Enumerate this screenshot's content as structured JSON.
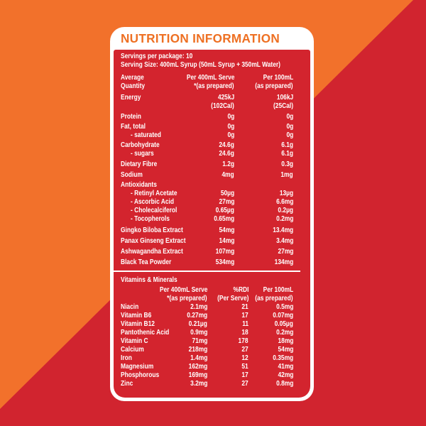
{
  "colors": {
    "background_orange": "#F2712B",
    "background_red": "#D1242F",
    "table_red": "#D3242E",
    "title_orange": "#EE7023",
    "text_white": "#FFFFFF"
  },
  "panel": {
    "title": "NUTRITION INFORMATION",
    "servings_line1": "Servings per package: 10",
    "servings_line2": "Serving Size: 400mL Syrup (50mL Syrup + 350mL Water)"
  },
  "main_table": {
    "header": {
      "col1_line1": "Average",
      "col1_line2": "Quantity",
      "col2_line1": "Per 400mL Serve",
      "col2_line2": "*(as prepared)",
      "col3_line1": "Per 100mL",
      "col3_line2": "(as prepared)"
    },
    "rows": [
      {
        "label": "Energy",
        "v400": "425kJ",
        "v100": "106kJ",
        "gap": 4
      },
      {
        "label": "",
        "v400": "(102Cal)",
        "v100": "(25Cal)",
        "gap": 0
      },
      {
        "label": "Protein",
        "v400": "0g",
        "v100": "0g",
        "gap": 3
      },
      {
        "label": "Fat, total",
        "v400": "0g",
        "v100": "0g",
        "gap": 2
      },
      {
        "label": "- saturated",
        "v400": "0g",
        "v100": "0g",
        "indent": true,
        "gap": 0
      },
      {
        "label": "Carbohydrate",
        "v400": "24.6g",
        "v100": "6.1g",
        "gap": 2
      },
      {
        "label": "- sugars",
        "v400": "24.6g",
        "v100": "6.1g",
        "indent": true,
        "gap": 0
      },
      {
        "label": "Dietary Fibre",
        "v400": "1.2g",
        "v100": "0.3g",
        "gap": 3
      },
      {
        "label": "Sodium",
        "v400": "4mg",
        "v100": "1mg",
        "gap": 3
      },
      {
        "label": "Antioxidants",
        "v400": "",
        "v100": "",
        "gap": 2
      },
      {
        "label": "- Retinyl Acetate",
        "v400": "50µg",
        "v100": "13µg",
        "indent": true,
        "gap": 0
      },
      {
        "label": "- Ascorbic Acid",
        "v400": "27mg",
        "v100": "6.6mg",
        "indent": true,
        "gap": 0
      },
      {
        "label": "- Cholecalciferol",
        "v400": "0.65µg",
        "v100": "0.2µg",
        "indent": true,
        "gap": 0
      },
      {
        "label": "- Tocopherols",
        "v400": "0.65mg",
        "v100": "0.2mg",
        "indent": true,
        "gap": 0
      },
      {
        "label": "Gingko Biloba Extract",
        "v400": "54mg",
        "v100": "13.4mg",
        "gap": 4
      },
      {
        "label": "Panax Ginseng Extract",
        "v400": "14mg",
        "v100": "3.4mg",
        "gap": 3
      },
      {
        "label": "Ashwagandha Extract",
        "v400": "107mg",
        "v100": "27mg",
        "gap": 3
      },
      {
        "label": "Black Tea Powder",
        "v400": "534mg",
        "v100": "134mg",
        "gap": 3
      }
    ]
  },
  "vitamins_table": {
    "section_title": "Vitamins & Minerals",
    "header": {
      "col2_line1": "Per 400mL Serve",
      "col2_line2": "*(as prepared)",
      "col3_line1": "%RDI",
      "col3_line2": "(Per Serve)",
      "col4_line1": "Per 100mL",
      "col4_line2": "(as prepared)"
    },
    "rows": [
      {
        "label": "Niacin",
        "v400": "2.1mg",
        "rdi": "21",
        "v100": "0.5mg"
      },
      {
        "label": "Vitamin B6",
        "v400": "0.27mg",
        "rdi": "17",
        "v100": "0.07mg"
      },
      {
        "label": "Vitamin B12",
        "v400": "0.21µg",
        "rdi": "11",
        "v100": "0.05µg"
      },
      {
        "label": "Pantothenic Acid",
        "v400": "0.9mg",
        "rdi": "18",
        "v100": "0.2mg"
      },
      {
        "label": "Vitamin C",
        "v400": "71mg",
        "rdi": "178",
        "v100": "18mg"
      },
      {
        "label": "Calcium",
        "v400": "218mg",
        "rdi": "27",
        "v100": "54mg"
      },
      {
        "label": "Iron",
        "v400": "1.4mg",
        "rdi": "12",
        "v100": "0.35mg"
      },
      {
        "label": "Magnesium",
        "v400": "162mg",
        "rdi": "51",
        "v100": "41mg"
      },
      {
        "label": "Phosphorous",
        "v400": "169mg",
        "rdi": "17",
        "v100": "42mg"
      },
      {
        "label": "Zinc",
        "v400": "3.2mg",
        "rdi": "27",
        "v100": "0.8mg"
      }
    ]
  }
}
